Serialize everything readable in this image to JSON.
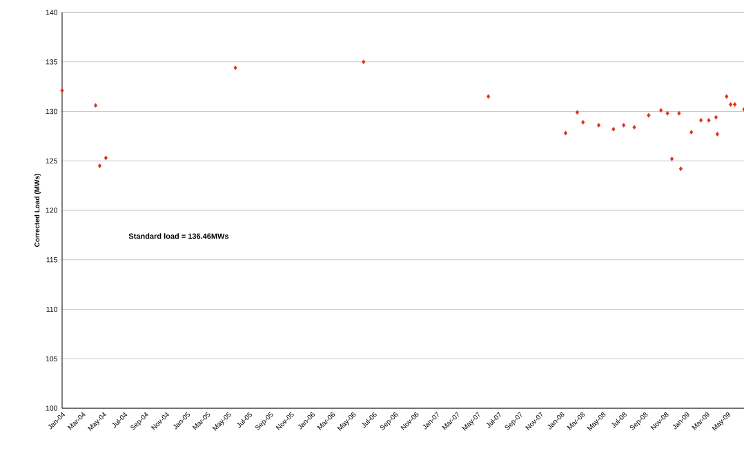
{
  "chart_data": {
    "type": "scatter",
    "ylabel": "Corrected Load (MWs)",
    "annotations": [
      "Standard load = 136.46MWs"
    ],
    "x": [
      "2004-01-01",
      "2004-04-08",
      "2004-04-20",
      "2004-05-08",
      "2005-05-22",
      "2006-06-01",
      "2007-06-01",
      "2008-01-13",
      "2008-02-16",
      "2008-03-04",
      "2008-04-19",
      "2008-06-01",
      "2008-07-01",
      "2008-08-01",
      "2008-09-12",
      "2008-10-18",
      "2008-11-06",
      "2008-11-19",
      "2008-12-10",
      "2008-12-15",
      "2009-01-15",
      "2009-02-12",
      "2009-03-07",
      "2009-03-28",
      "2009-04-01",
      "2009-04-28",
      "2009-05-10",
      "2009-05-22",
      "2009-06-18"
    ],
    "values": [
      132.1,
      130.6,
      124.5,
      125.3,
      134.4,
      135.0,
      131.5,
      127.8,
      129.9,
      128.9,
      128.6,
      128.2,
      128.6,
      128.4,
      129.6,
      130.1,
      129.8,
      125.2,
      129.8,
      124.2,
      127.9,
      129.1,
      129.1,
      129.4,
      127.7,
      131.5,
      130.7,
      130.7,
      130.2
    ],
    "color": "#e0301a",
    "marker": "diamond",
    "grid": "y",
    "xlim": [
      "2004-01-01",
      "2009-06-18"
    ],
    "xticks": [
      {
        "value": "2004-01",
        "label": "Jan-04"
      },
      {
        "value": "2004-03",
        "label": "Mar-04"
      },
      {
        "value": "2004-05",
        "label": "May-04"
      },
      {
        "value": "2004-07",
        "label": "Jul-04"
      },
      {
        "value": "2004-09",
        "label": "Sep-04"
      },
      {
        "value": "2004-11",
        "label": "Nov-04"
      },
      {
        "value": "2005-01",
        "label": "Jan-05"
      },
      {
        "value": "2005-03",
        "label": "Mar-05"
      },
      {
        "value": "2005-05",
        "label": "May-05"
      },
      {
        "value": "2005-07",
        "label": "Jul-05"
      },
      {
        "value": "2005-09",
        "label": "Sep-05"
      },
      {
        "value": "2005-11",
        "label": "Nov-05"
      },
      {
        "value": "2006-01",
        "label": "Jan-06"
      },
      {
        "value": "2006-03",
        "label": "Mar-06"
      },
      {
        "value": "2006-05",
        "label": "May-06"
      },
      {
        "value": "2006-07",
        "label": "Jul-06"
      },
      {
        "value": "2006-09",
        "label": "Sep-06"
      },
      {
        "value": "2006-11",
        "label": "Nov-06"
      },
      {
        "value": "2007-01",
        "label": "Jan-07"
      },
      {
        "value": "2007-03",
        "label": "Mar-07"
      },
      {
        "value": "2007-05",
        "label": "May-07"
      },
      {
        "value": "2007-07",
        "label": "Jul-07"
      },
      {
        "value": "2007-09",
        "label": "Sep-07"
      },
      {
        "value": "2007-11",
        "label": "Nov-07"
      },
      {
        "value": "2008-01",
        "label": "Jan-08"
      },
      {
        "value": "2008-03",
        "label": "Mar-08"
      },
      {
        "value": "2008-05",
        "label": "May-08"
      },
      {
        "value": "2008-07",
        "label": "Jul-08"
      },
      {
        "value": "2008-09",
        "label": "Sep-08"
      },
      {
        "value": "2008-11",
        "label": "Nov-08"
      },
      {
        "value": "2009-01",
        "label": "Jan-09"
      },
      {
        "value": "2009-03",
        "label": "Mar-09"
      },
      {
        "value": "2009-05",
        "label": "May-09"
      }
    ],
    "ylim": [
      100,
      140
    ],
    "yticks": [
      100,
      105,
      110,
      115,
      120,
      125,
      130,
      135,
      140
    ]
  }
}
